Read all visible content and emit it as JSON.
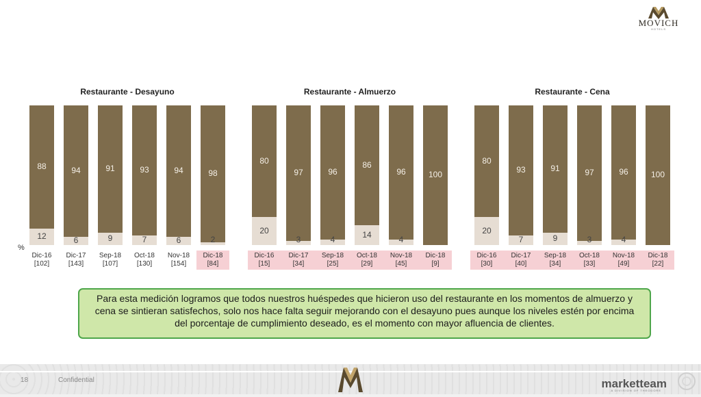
{
  "brand_top": {
    "name": "MOVICH",
    "sub": "HOTELS"
  },
  "footer": {
    "page": "18",
    "confidential": "Confidential",
    "brand": "marketteam",
    "brand_sub": "A DIVISION OF THEODORE"
  },
  "note": "Para esta medición logramos que todos nuestros huéspedes que hicieron uso del restaurante en los momentos de almuerzo y cena se sintieran satisfechos, solo nos hace falta seguir mejorando con el desayuno pues aunque los niveles estén por encima del porcentaje de cumplimiento deseado, es el momento con mayor afluencia de clientes.",
  "percent_label": "%",
  "colors": {
    "bar_top": "#7e6c4c",
    "bar_bottom": "#e6ddd3",
    "highlight": "#f6d0d4",
    "note_bg": "#cfe7a9",
    "note_border": "#4ea64a"
  },
  "chart_data": [
    {
      "type": "bar",
      "stacked": true,
      "title": "Restaurante - Desayuno",
      "categories": [
        "Dic-16",
        "Dic-17",
        "Sep-18",
        "Oct-18",
        "Nov-18",
        "Dic-18"
      ],
      "bases": [
        "[102]",
        "[143]",
        "[107]",
        "[130]",
        "[154]",
        "[84]"
      ],
      "series": [
        {
          "values": [
            88,
            94,
            91,
            93,
            94,
            98
          ]
        },
        {
          "values": [
            12,
            6,
            9,
            7,
            6,
            2
          ]
        }
      ],
      "highlight_categories": [
        "Dic-18"
      ],
      "ylim": [
        0,
        100
      ]
    },
    {
      "type": "bar",
      "stacked": true,
      "title": "Restaurante - Almuerzo",
      "categories": [
        "Dic-16",
        "Dic-17",
        "Sep-18",
        "Oct-18",
        "Nov-18",
        "Dic-18"
      ],
      "bases": [
        "[15]",
        "[34]",
        "[25]",
        "[29]",
        "[45]",
        "[9]"
      ],
      "series": [
        {
          "values": [
            80,
            97,
            96,
            86,
            96,
            100
          ]
        },
        {
          "values": [
            20,
            3,
            4,
            14,
            4,
            null
          ]
        }
      ],
      "highlight_categories": [
        "Dic-16",
        "Dic-17",
        "Sep-18",
        "Oct-18",
        "Nov-18",
        "Dic-18"
      ],
      "ylim": [
        0,
        100
      ]
    },
    {
      "type": "bar",
      "stacked": true,
      "title": "Restaurante - Cena",
      "categories": [
        "Dic-16",
        "Dic-17",
        "Sep-18",
        "Oct-18",
        "Nov-18",
        "Dic-18"
      ],
      "bases": [
        "[30]",
        "[40]",
        "[34]",
        "[33]",
        "[49]",
        "[22]"
      ],
      "series": [
        {
          "values": [
            80,
            93,
            91,
            97,
            96,
            100
          ]
        },
        {
          "values": [
            20,
            7,
            9,
            3,
            4,
            null
          ]
        }
      ],
      "highlight_categories": [
        "Dic-16",
        "Dic-17",
        "Sep-18",
        "Oct-18",
        "Nov-18",
        "Dic-18"
      ],
      "ylim": [
        0,
        100
      ]
    }
  ]
}
